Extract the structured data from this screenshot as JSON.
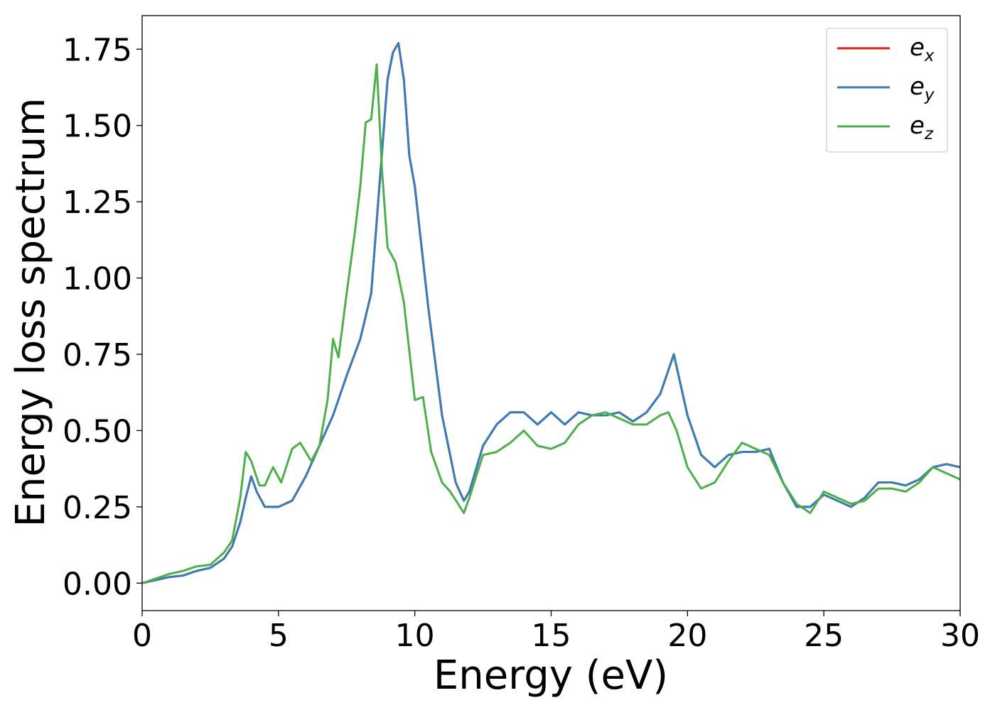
{
  "chart_data": {
    "type": "line",
    "xlabel": "Energy (eV)",
    "ylabel": "Energy loss spectrum",
    "xlim": [
      0,
      30
    ],
    "ylim": [
      -0.09,
      1.86
    ],
    "xticks": [
      0,
      5,
      10,
      15,
      20,
      25,
      30
    ],
    "xtick_labels": [
      "0",
      "5",
      "10",
      "15",
      "20",
      "25",
      "30"
    ],
    "yticks": [
      0,
      0.25,
      0.5,
      0.75,
      1.0,
      1.25,
      1.5,
      1.75
    ],
    "ytick_labels": [
      "0.00",
      "0.25",
      "0.50",
      "0.75",
      "1.00",
      "1.25",
      "1.50",
      "1.75"
    ],
    "grid": false,
    "legend": {
      "position": "top-right",
      "entries": [
        {
          "base": "e",
          "sub": "x",
          "color": "#e41a1c"
        },
        {
          "base": "e",
          "sub": "y",
          "color": "#377eb8"
        },
        {
          "base": "e",
          "sub": "z",
          "color": "#4daf4a"
        }
      ]
    },
    "series": [
      {
        "name": "e_x",
        "color": "#e41a1c",
        "x": [
          0,
          0.5,
          1,
          1.5,
          2,
          2.5,
          3,
          3.3,
          3.6,
          3.8,
          4.0,
          4.2,
          4.5,
          5.0,
          5.5,
          6.0,
          6.5,
          7.0,
          7.5,
          8.0,
          8.4,
          8.7,
          9.0,
          9.2,
          9.4,
          9.6,
          9.8,
          10.0,
          10.5,
          11.0,
          11.5,
          11.8,
          12.0,
          12.5,
          13.0,
          13.5,
          14.0,
          14.5,
          15.0,
          15.5,
          16.0,
          16.5,
          17.0,
          17.5,
          18.0,
          18.5,
          19.0,
          19.5,
          20.0,
          20.5,
          21.0,
          21.5,
          22.0,
          22.5,
          23.0,
          23.5,
          24.0,
          24.5,
          25.0,
          25.5,
          26.0,
          26.5,
          27.0,
          27.5,
          28.0,
          28.5,
          29.0,
          29.5,
          30.0
        ],
        "y": [
          0.0,
          0.01,
          0.02,
          0.025,
          0.04,
          0.05,
          0.08,
          0.12,
          0.2,
          0.28,
          0.35,
          0.3,
          0.25,
          0.25,
          0.27,
          0.35,
          0.45,
          0.55,
          0.68,
          0.8,
          0.95,
          1.3,
          1.65,
          1.74,
          1.77,
          1.65,
          1.4,
          1.3,
          0.9,
          0.55,
          0.33,
          0.27,
          0.3,
          0.45,
          0.52,
          0.56,
          0.56,
          0.52,
          0.56,
          0.52,
          0.56,
          0.55,
          0.55,
          0.56,
          0.53,
          0.56,
          0.62,
          0.75,
          0.55,
          0.42,
          0.38,
          0.42,
          0.43,
          0.43,
          0.44,
          0.33,
          0.25,
          0.25,
          0.29,
          0.27,
          0.25,
          0.28,
          0.33,
          0.33,
          0.32,
          0.34,
          0.38,
          0.39,
          0.38
        ]
      },
      {
        "name": "e_y",
        "color": "#377eb8",
        "x": [
          0,
          0.5,
          1,
          1.5,
          2,
          2.5,
          3,
          3.3,
          3.6,
          3.8,
          4.0,
          4.2,
          4.5,
          5.0,
          5.5,
          6.0,
          6.5,
          7.0,
          7.5,
          8.0,
          8.4,
          8.7,
          9.0,
          9.2,
          9.4,
          9.6,
          9.8,
          10.0,
          10.5,
          11.0,
          11.5,
          11.8,
          12.0,
          12.5,
          13.0,
          13.5,
          14.0,
          14.5,
          15.0,
          15.5,
          16.0,
          16.5,
          17.0,
          17.5,
          18.0,
          18.5,
          19.0,
          19.5,
          20.0,
          20.5,
          21.0,
          21.5,
          22.0,
          22.5,
          23.0,
          23.5,
          24.0,
          24.5,
          25.0,
          25.5,
          26.0,
          26.5,
          27.0,
          27.5,
          28.0,
          28.5,
          29.0,
          29.5,
          30.0
        ],
        "y": [
          0.0,
          0.01,
          0.02,
          0.025,
          0.04,
          0.05,
          0.08,
          0.12,
          0.2,
          0.28,
          0.35,
          0.3,
          0.25,
          0.25,
          0.27,
          0.35,
          0.45,
          0.55,
          0.68,
          0.8,
          0.95,
          1.3,
          1.65,
          1.74,
          1.77,
          1.65,
          1.4,
          1.3,
          0.9,
          0.55,
          0.33,
          0.27,
          0.3,
          0.45,
          0.52,
          0.56,
          0.56,
          0.52,
          0.56,
          0.52,
          0.56,
          0.55,
          0.55,
          0.56,
          0.53,
          0.56,
          0.62,
          0.75,
          0.55,
          0.42,
          0.38,
          0.42,
          0.43,
          0.43,
          0.44,
          0.33,
          0.25,
          0.25,
          0.29,
          0.27,
          0.25,
          0.28,
          0.33,
          0.33,
          0.32,
          0.34,
          0.38,
          0.39,
          0.38
        ]
      },
      {
        "name": "e_z",
        "color": "#4daf4a",
        "x": [
          0,
          0.5,
          1,
          1.5,
          2,
          2.5,
          3,
          3.3,
          3.6,
          3.8,
          4.0,
          4.3,
          4.5,
          4.8,
          5.1,
          5.5,
          5.8,
          6.2,
          6.5,
          6.8,
          7.0,
          7.2,
          7.5,
          7.8,
          8.0,
          8.2,
          8.4,
          8.6,
          8.8,
          9.0,
          9.3,
          9.6,
          10.0,
          10.3,
          10.6,
          11.0,
          11.3,
          11.8,
          12.0,
          12.5,
          13.0,
          13.5,
          14.0,
          14.5,
          15.0,
          15.5,
          16.0,
          16.5,
          17.0,
          17.5,
          18.0,
          18.5,
          19.0,
          19.3,
          19.6,
          20.0,
          20.5,
          21.0,
          21.5,
          22.0,
          22.5,
          23.0,
          23.5,
          24.0,
          24.5,
          25.0,
          25.5,
          26.0,
          26.5,
          27.0,
          27.5,
          28.0,
          28.5,
          29.0,
          29.5,
          30.0
        ],
        "y": [
          0.0,
          0.015,
          0.03,
          0.04,
          0.055,
          0.06,
          0.1,
          0.14,
          0.28,
          0.43,
          0.4,
          0.32,
          0.32,
          0.38,
          0.33,
          0.44,
          0.46,
          0.4,
          0.45,
          0.6,
          0.8,
          0.74,
          0.95,
          1.15,
          1.3,
          1.51,
          1.52,
          1.7,
          1.35,
          1.1,
          1.05,
          0.92,
          0.6,
          0.61,
          0.43,
          0.33,
          0.3,
          0.23,
          0.28,
          0.42,
          0.43,
          0.46,
          0.5,
          0.45,
          0.44,
          0.46,
          0.52,
          0.55,
          0.56,
          0.54,
          0.52,
          0.52,
          0.55,
          0.56,
          0.5,
          0.38,
          0.31,
          0.33,
          0.4,
          0.46,
          0.44,
          0.42,
          0.33,
          0.26,
          0.23,
          0.3,
          0.28,
          0.26,
          0.27,
          0.31,
          0.31,
          0.3,
          0.33,
          0.38,
          0.36,
          0.34
        ]
      }
    ]
  }
}
